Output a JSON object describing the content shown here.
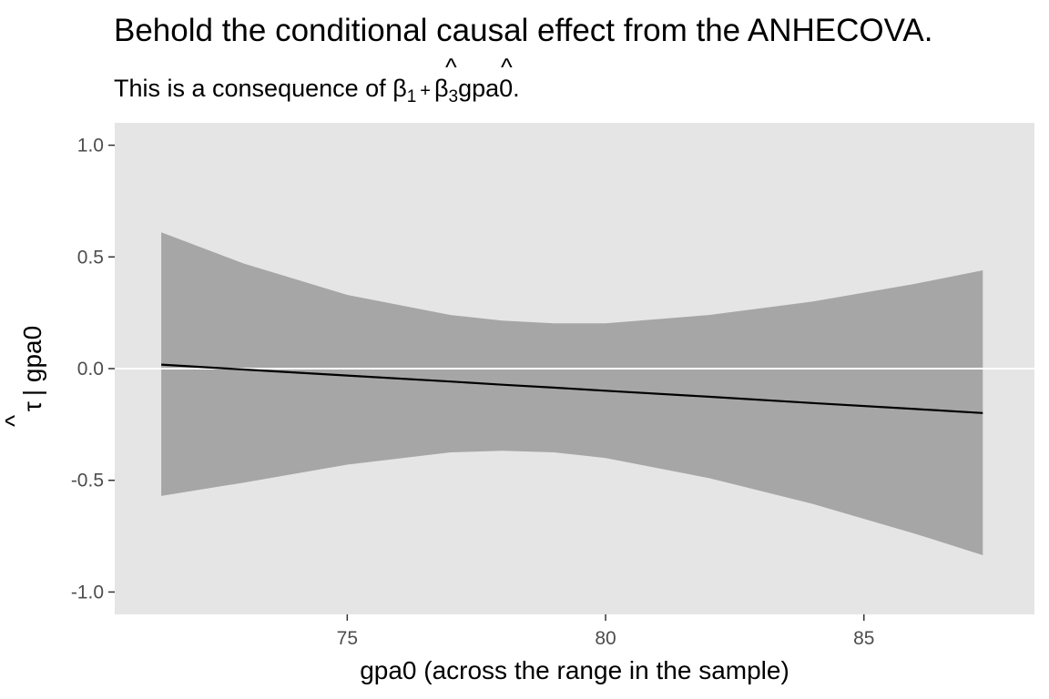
{
  "chart_data": {
    "type": "line",
    "title": "Behold the conditional causal effect from the ANHECOVA.",
    "subtitle": {
      "prefix": "This is a consequence of ",
      "beta": "β",
      "hat": "^",
      "sub1": "1",
      "plus": "+",
      "sub3": "3",
      "suffix": "gpa0."
    },
    "xlabel": "gpa0 (across the range in the sample)",
    "ylabel": {
      "tau": "τ",
      "hat": "^",
      "rest": "| gpa0"
    },
    "xlim": [
      70.5,
      88.3
    ],
    "ylim": [
      -1.1,
      1.1
    ],
    "x_ticks": [
      75,
      80,
      85
    ],
    "x_tick_labels": [
      "75",
      "80",
      "85"
    ],
    "y_ticks": [
      1.0,
      0.5,
      0.0,
      -0.5,
      -1.0
    ],
    "y_tick_labels": [
      "1.0",
      "0.5",
      "0.0",
      "-0.5",
      "-1.0"
    ],
    "grid": false,
    "reference_line": {
      "y": 0,
      "color": "#ffffff"
    },
    "series": [
      {
        "x": [
          71.4,
          73.0,
          75.0,
          77.0,
          78.0,
          79.0,
          80.0,
          82.0,
          84.0,
          86.0,
          87.3
        ],
        "estimate": [
          0.018,
          -0.004,
          -0.031,
          -0.058,
          -0.072,
          -0.085,
          -0.099,
          -0.126,
          -0.154,
          -0.181,
          -0.199
        ],
        "upper": [
          0.61,
          0.47,
          0.33,
          0.24,
          0.215,
          0.203,
          0.203,
          0.24,
          0.3,
          0.38,
          0.44
        ],
        "lower": [
          -0.57,
          -0.51,
          -0.43,
          -0.375,
          -0.368,
          -0.375,
          -0.4,
          -0.49,
          -0.605,
          -0.74,
          -0.835
        ]
      }
    ],
    "colors": {
      "panel": "#e5e5e5",
      "ribbon": "#a6a6a6",
      "line": "#000000",
      "tick": "#333333"
    }
  }
}
